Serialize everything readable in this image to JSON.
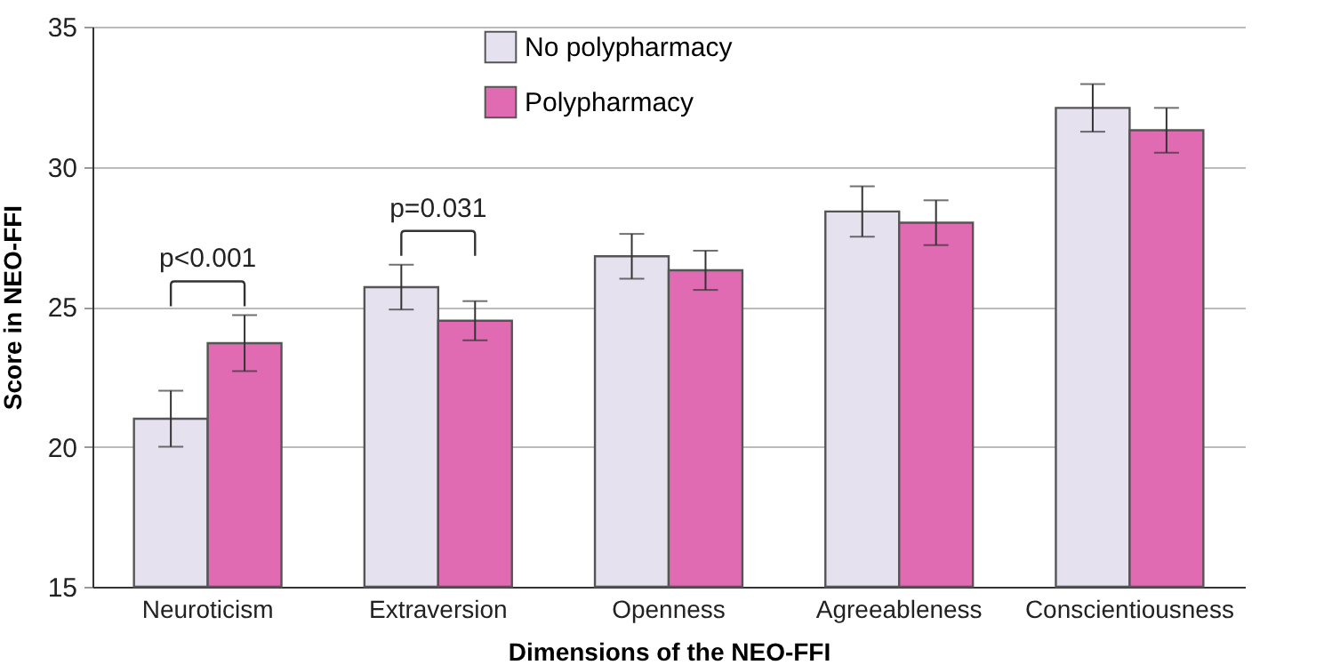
{
  "chart_data": {
    "type": "bar",
    "xlabel": "Dimensions of the NEO-FFI",
    "ylabel": "Score in NEO-FFI",
    "categories": [
      "Neuroticism",
      "Extraversion",
      "Openness",
      "Agreeableness",
      "Conscientiousness"
    ],
    "series": [
      {
        "name": "No polypharmacy",
        "color": "#e6e1ef",
        "values": [
          21.0,
          25.7,
          26.8,
          28.4,
          32.1
        ],
        "errors": [
          1.0,
          0.8,
          0.8,
          0.9,
          0.85
        ]
      },
      {
        "name": "Polypharmacy",
        "color": "#e06bb3",
        "values": [
          23.7,
          24.5,
          26.3,
          28.0,
          31.3
        ],
        "errors": [
          1.0,
          0.7,
          0.7,
          0.8,
          0.8
        ]
      }
    ],
    "ylim": [
      15,
      35
    ],
    "yticks": [
      15,
      20,
      25,
      30,
      35
    ],
    "grid": "y",
    "legend": "top",
    "annotations": [
      "p<0.001",
      "p=0.031"
    ]
  }
}
